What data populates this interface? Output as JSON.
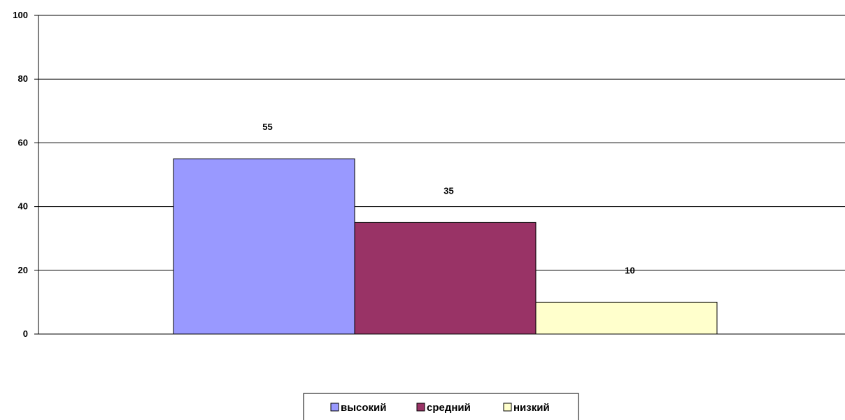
{
  "chart_data": {
    "type": "bar",
    "categories": [
      ""
    ],
    "series": [
      {
        "name": "высокий",
        "values": [
          55
        ],
        "color": "#9999FF"
      },
      {
        "name": "средний",
        "values": [
          35
        ],
        "color": "#993366"
      },
      {
        "name": "низкий",
        "values": [
          10
        ],
        "color": "#FFFFCC"
      }
    ],
    "title": "",
    "xlabel": "",
    "ylabel": "",
    "ylim": [
      0,
      100
    ],
    "yticks": [
      "0",
      "20",
      "40",
      "60",
      "80",
      "100"
    ],
    "data_labels": [
      "55",
      "35",
      "10"
    ],
    "grid": true,
    "legend_position": "bottom"
  }
}
